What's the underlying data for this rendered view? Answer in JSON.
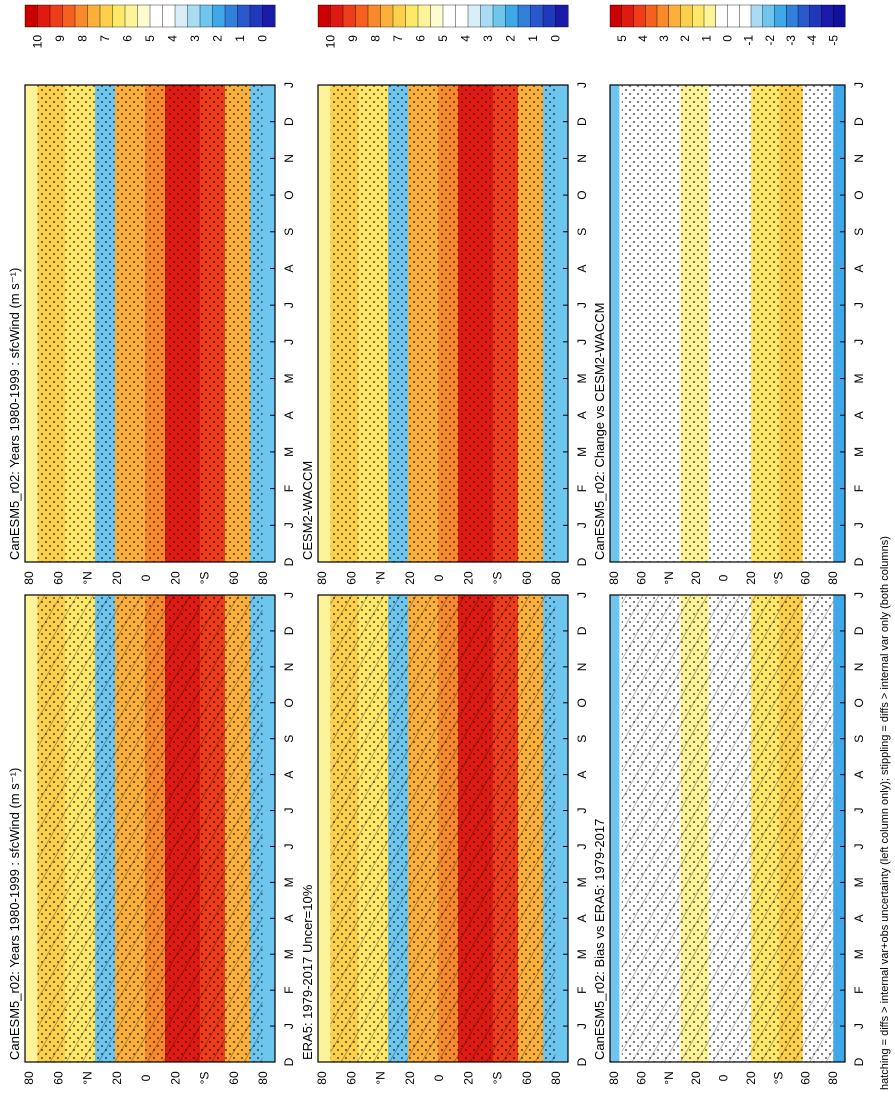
{
  "footnote": "hatching = diffs > internal var+obs uncertainty (left column only); stippling = diffs > internal var only (both columns)",
  "months": [
    "D",
    "J",
    "F",
    "M",
    "A",
    "M",
    "J",
    "J",
    "A",
    "S",
    "O",
    "N",
    "D",
    "J"
  ],
  "lat_labels": [
    "80",
    "60",
    "°N",
    "20",
    "0",
    "20",
    "°S",
    "60",
    "80"
  ],
  "colorbars": {
    "abs": {
      "labels": [
        "10",
        "9",
        "8",
        "7",
        "6",
        "5",
        "4",
        "3",
        "2",
        "1",
        "0"
      ],
      "colors": [
        "#cc0000",
        "#e01a10",
        "#ee3d18",
        "#f56020",
        "#f98a2a",
        "#fbb03a",
        "#fcd04a",
        "#fde86a",
        "#fdf49a",
        "#fffbd0",
        "#ffffff",
        "#ffffff",
        "#d8eef8",
        "#a8dcf4",
        "#6ec6ee",
        "#3ea8e8",
        "#3380da",
        "#2858cc",
        "#2038bb",
        "#1a1aa8"
      ]
    },
    "diff": {
      "labels": [
        "5",
        "4",
        "3",
        "2",
        "1",
        "0",
        "-1",
        "-2",
        "-3",
        "-4",
        "-5"
      ],
      "colors": [
        "#cc0000",
        "#e01a10",
        "#ee3d18",
        "#f56020",
        "#f98a2a",
        "#fbb03a",
        "#fcd04a",
        "#fde86a",
        "#fdf49a",
        "#ffffff",
        "#ffffff",
        "#ffffff",
        "#a8dcf4",
        "#6ec6ee",
        "#3ea8e8",
        "#3380da",
        "#2858cc",
        "#2038bb",
        "#1a1aa8",
        "#1010a0"
      ]
    }
  },
  "chart_data": [
    {
      "type": "heatmap",
      "title": "CanESM5_r02: Years 1980-1999 : sfcWind (m s⁻¹)",
      "xlabel": "",
      "ylabel": "",
      "scale": "abs",
      "hatching": true,
      "stippling": true
    },
    {
      "type": "heatmap",
      "title": "ERA5: 1979-2017 Uncer=10%",
      "xlabel": "",
      "ylabel": "",
      "scale": "abs",
      "hatching": true,
      "stippling": true
    },
    {
      "type": "heatmap",
      "title": "CanESM5_r02: Bias vs ERA5: 1979-2017",
      "xlabel": "",
      "ylabel": "",
      "scale": "diff",
      "hatching": true,
      "stippling": true
    },
    {
      "type": "heatmap",
      "title": "CanESM5_r02: Years 1980-1999 : sfcWind (m s⁻¹)",
      "xlabel": "",
      "ylabel": "",
      "scale": "abs",
      "hatching": false,
      "stippling": true
    },
    {
      "type": "heatmap",
      "title": "CESM2-WACCM",
      "xlabel": "",
      "ylabel": "",
      "scale": "abs",
      "hatching": false,
      "stippling": true
    },
    {
      "type": "heatmap",
      "title": "CanESM5_r02: Change vs CESM2-WACCM",
      "xlabel": "",
      "ylabel": "",
      "scale": "diff",
      "hatching": false,
      "stippling": true
    }
  ]
}
